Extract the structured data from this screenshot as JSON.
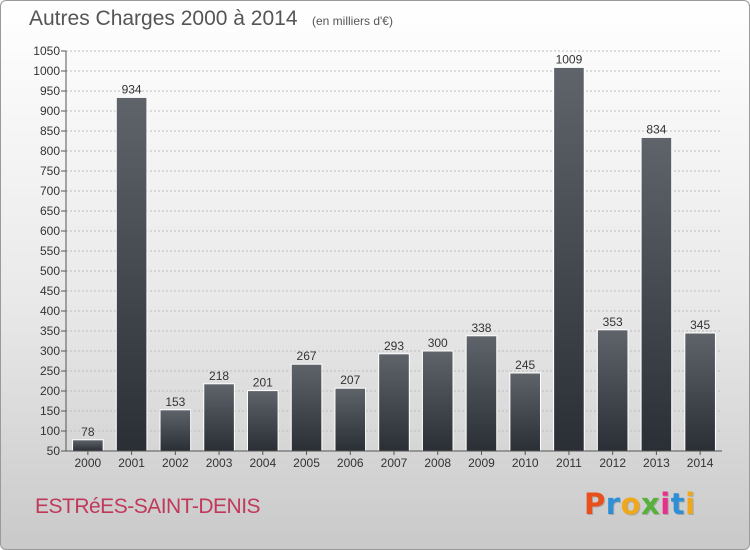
{
  "header": {
    "title": "Autres Charges 2000 à 2014",
    "subtitle": "(en milliers d'€)"
  },
  "footer": {
    "place": "ESTRéES-SAINT-DENIS",
    "logo": "Proxiti",
    "logo_colors": [
      "#e8501e",
      "#2f8fd6",
      "#f0a81a",
      "#56b13b",
      "#e8308a",
      "#2f8fd6",
      "#f0a81a"
    ]
  },
  "chart_data": {
    "type": "bar",
    "title": "Autres Charges 2000 à 2014",
    "subtitle": "(en milliers d'€)",
    "categories": [
      "2000",
      "2001",
      "2002",
      "2003",
      "2004",
      "2005",
      "2006",
      "2007",
      "2008",
      "2009",
      "2010",
      "2011",
      "2012",
      "2013",
      "2014"
    ],
    "values": [
      78,
      934,
      153,
      218,
      201,
      267,
      207,
      293,
      300,
      338,
      245,
      1009,
      353,
      834,
      345
    ],
    "ylim": [
      50,
      1050
    ],
    "yticks": [
      50,
      100,
      150,
      200,
      250,
      300,
      350,
      400,
      450,
      500,
      550,
      600,
      650,
      700,
      750,
      800,
      850,
      900,
      950,
      1000,
      1050
    ],
    "grid": true,
    "bar_color_top": "#5f646b",
    "bar_color_bottom": "#2a2f35"
  }
}
